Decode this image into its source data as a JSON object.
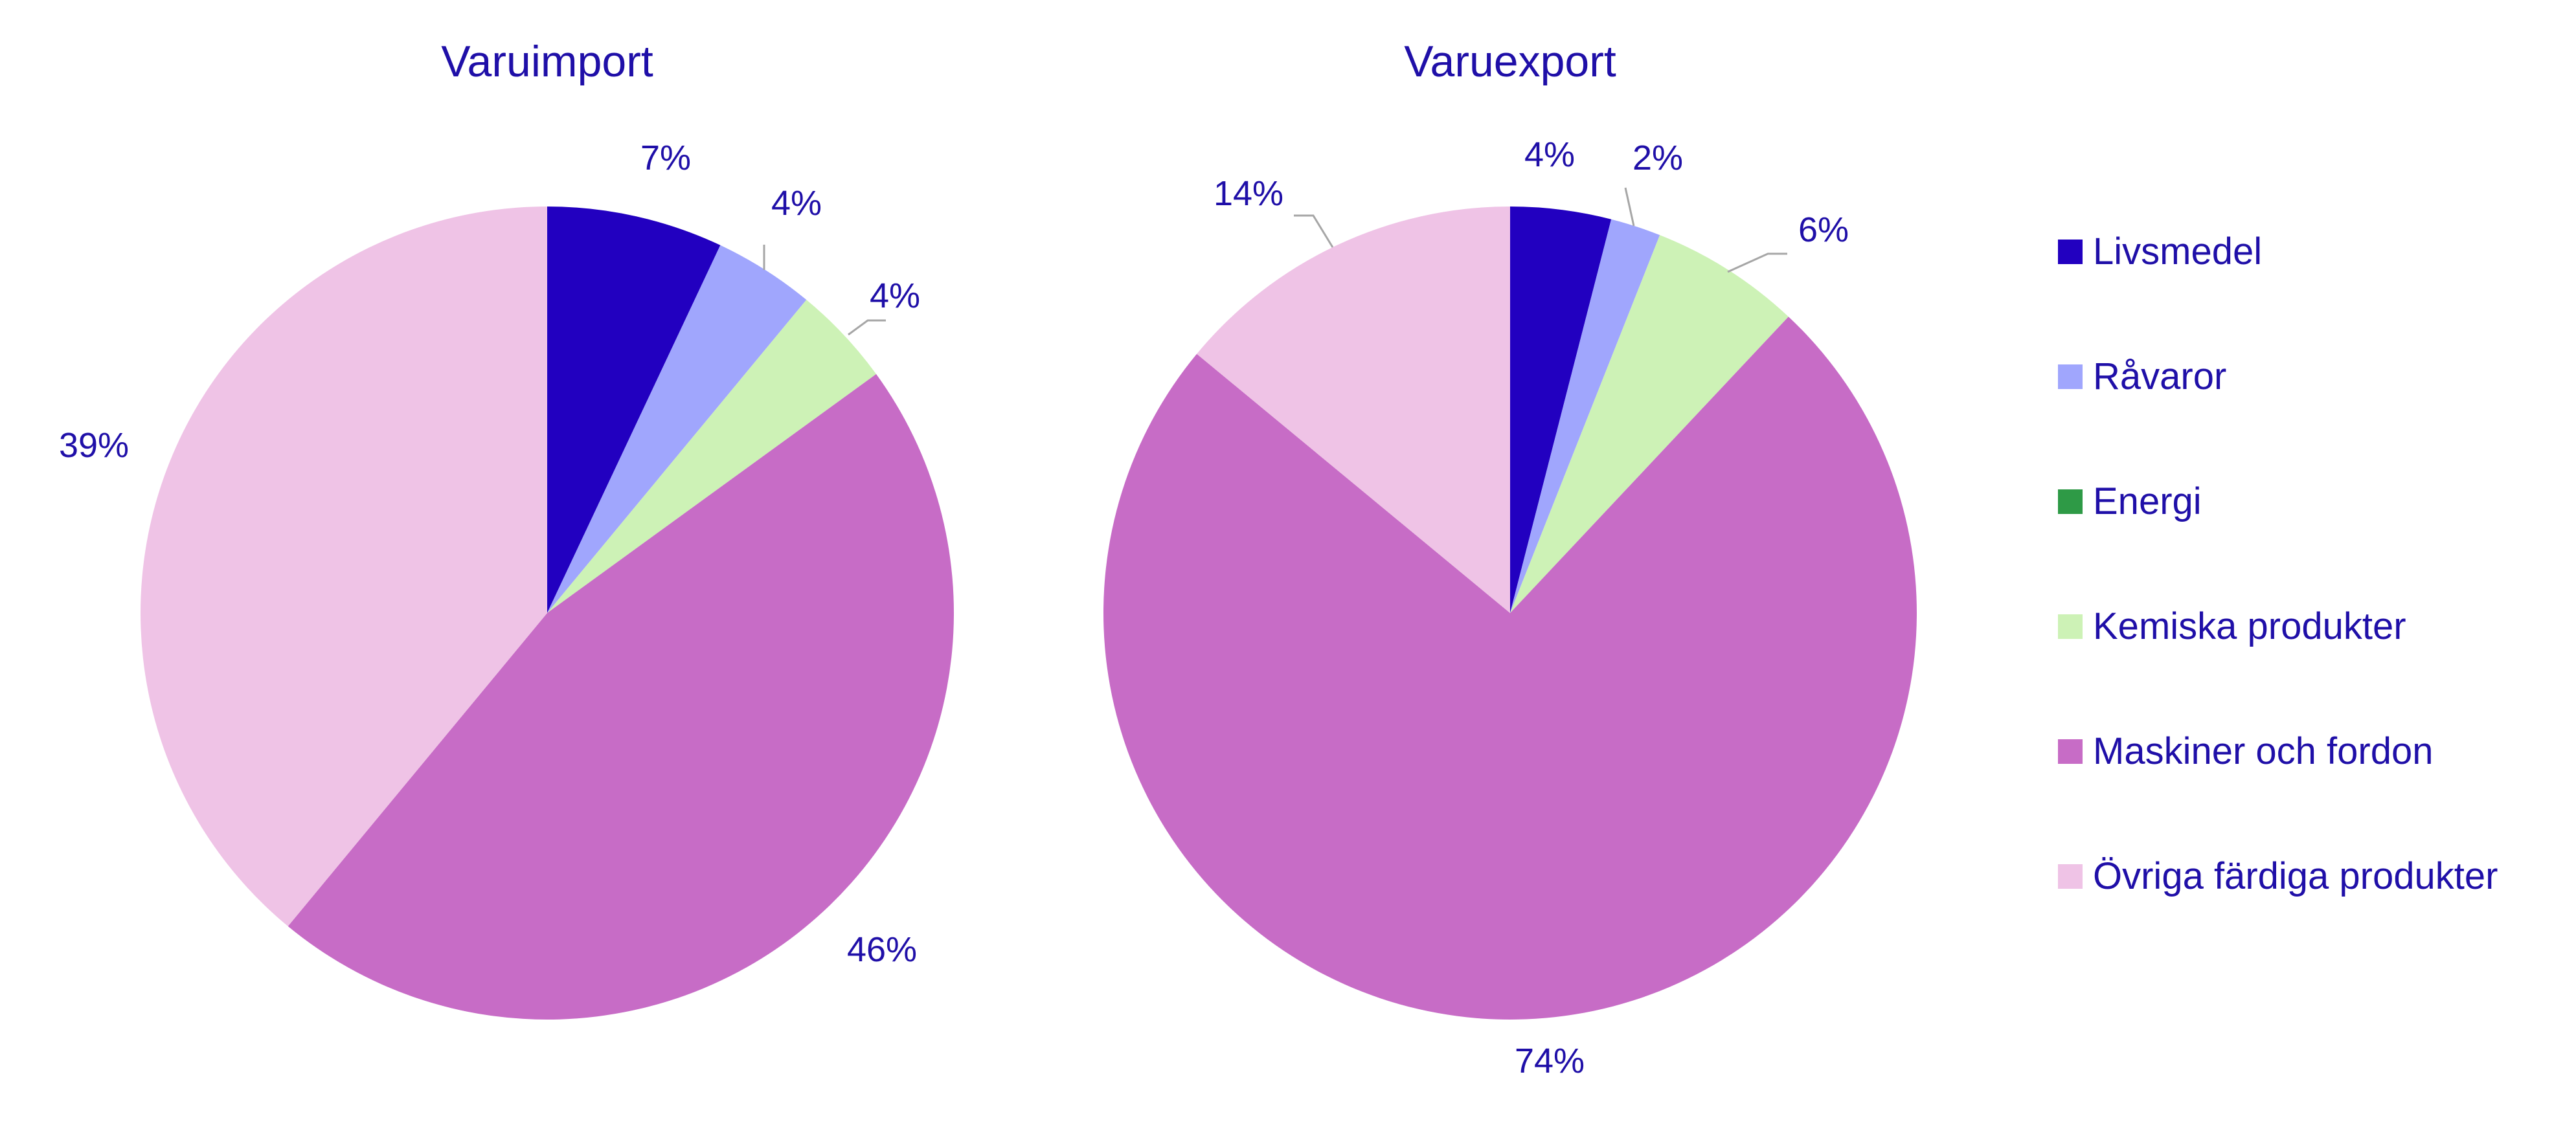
{
  "chart_data": [
    {
      "type": "pie",
      "title": "Varuimport",
      "categories": [
        "Livsmedel",
        "Råvaror",
        "Energi",
        "Kemiska produkter",
        "Maskiner och fordon",
        "Övriga färdiga produkter"
      ],
      "values": [
        7,
        4,
        0,
        4,
        46,
        39
      ],
      "labels": [
        "7%",
        "4%",
        "",
        "4%",
        "46%",
        "39%"
      ]
    },
    {
      "type": "pie",
      "title": "Varuexport",
      "categories": [
        "Livsmedel",
        "Råvaror",
        "Energi",
        "Kemiska produkter",
        "Maskiner och fordon",
        "Övriga färdiga produkter"
      ],
      "values": [
        4,
        2,
        0,
        6,
        74,
        14
      ],
      "labels": [
        "4%",
        "2%",
        "",
        "6%",
        "74%",
        "14%"
      ]
    }
  ],
  "legend": {
    "position": "right",
    "items": [
      {
        "label": "Livsmedel",
        "color": "#2200c0"
      },
      {
        "label": "Råvaror",
        "color": "#a0a6fd"
      },
      {
        "label": "Energi",
        "color": "#2e9a46"
      },
      {
        "label": "Kemiska produkter",
        "color": "#cdf2b6"
      },
      {
        "label": "Maskiner och fordon",
        "color": "#c76cc6"
      },
      {
        "label": "Övriga färdiga produkter",
        "color": "#efc3e6"
      }
    ]
  },
  "colors": {
    "text": "#1f0fa8",
    "leader_line": "#a6a6a6"
  }
}
